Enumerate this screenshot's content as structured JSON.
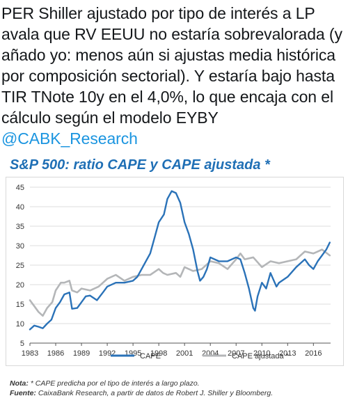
{
  "tweet": {
    "text": "PER Shiller ajustado por tipo de interés a LP avala que RV EEUU no estaría sobrevalorada (y añado yo: menos aún si ajustas media histórica por composición sectorial). Y estaría bajo hasta TIR TNote 10y en el 4,0%, lo que encaja con el cálculo según el modelo EYBY",
    "mention": "@CABK_Research"
  },
  "chart_data": {
    "type": "line",
    "title": "S&P 500: ratio CAPE y CAPE ajustada *",
    "xlabel": "",
    "ylabel": "",
    "ylim": [
      5,
      45
    ],
    "yticks": [
      "5",
      "10",
      "15",
      "20",
      "25",
      "30",
      "35",
      "40",
      "45"
    ],
    "xlim": [
      1983,
      2018
    ],
    "xticks": [
      "1983",
      "1986",
      "1989",
      "1992",
      "1995",
      "1998",
      "2001",
      "2004",
      "2007",
      "2010",
      "2013",
      "2016"
    ],
    "grid": true,
    "legend_position": "bottom",
    "colors": {
      "CAPE": "#2a72b8",
      "CAPE ajustada *": "#b4b6b8"
    },
    "series": [
      {
        "name": "CAPE",
        "x": [
          1983.0,
          1983.5,
          1984.0,
          1984.5,
          1985.0,
          1985.5,
          1986.0,
          1986.5,
          1987.0,
          1987.6,
          1987.9,
          1988.5,
          1989.0,
          1989.5,
          1990.0,
          1990.8,
          1991.5,
          1992.0,
          1993.0,
          1994.0,
          1995.0,
          1995.5,
          1996.0,
          1996.5,
          1997.0,
          1997.5,
          1998.0,
          1998.6,
          1999.0,
          1999.5,
          2000.0,
          2000.5,
          2001.0,
          2001.5,
          2002.0,
          2002.5,
          2002.8,
          2003.2,
          2003.6,
          2004.0,
          2005.0,
          2006.0,
          2007.0,
          2007.5,
          2008.0,
          2008.5,
          2009.0,
          2009.2,
          2009.5,
          2010.0,
          2010.5,
          2011.0,
          2011.7,
          2012.0,
          2013.0,
          2014.0,
          2015.0,
          2015.5,
          2016.0,
          2016.5,
          2017.0,
          2017.5,
          2017.9
        ],
        "values": [
          8.5,
          9.5,
          9.2,
          8.8,
          10.0,
          11.0,
          14.0,
          15.5,
          17.5,
          18.0,
          13.8,
          14.0,
          15.5,
          17.0,
          17.2,
          16.0,
          18.0,
          19.5,
          20.5,
          20.5,
          21.0,
          22.0,
          24.0,
          26.0,
          28.0,
          32.0,
          36.0,
          38.0,
          42.0,
          44.0,
          43.5,
          41.0,
          36.0,
          33.0,
          29.0,
          23.5,
          21.0,
          22.0,
          24.0,
          27.0,
          26.0,
          26.0,
          27.0,
          26.5,
          23.0,
          19.0,
          14.0,
          13.3,
          17.0,
          20.5,
          19.0,
          23.0,
          19.5,
          20.5,
          22.0,
          24.5,
          26.5,
          25.0,
          24.0,
          26.0,
          27.5,
          29.0,
          30.8
        ]
      },
      {
        "name": "CAPE ajustada *",
        "x": [
          1983.0,
          1983.5,
          1984.0,
          1984.5,
          1985.0,
          1985.6,
          1986.0,
          1986.6,
          1987.0,
          1987.6,
          1987.9,
          1988.5,
          1989.0,
          1990.0,
          1991.0,
          1992.0,
          1993.0,
          1994.0,
          1995.0,
          1996.0,
          1997.0,
          1998.0,
          1998.5,
          1999.0,
          2000.0,
          2000.5,
          2001.0,
          2002.0,
          2003.0,
          2004.0,
          2005.0,
          2006.0,
          2007.0,
          2007.5,
          2008.0,
          2009.0,
          2010.0,
          2011.0,
          2012.0,
          2013.0,
          2014.0,
          2015.0,
          2016.0,
          2016.5,
          2017.0,
          2017.9
        ],
        "values": [
          16.0,
          14.5,
          13.0,
          12.0,
          14.0,
          15.5,
          18.5,
          20.5,
          20.5,
          21.0,
          18.5,
          18.0,
          19.0,
          18.5,
          19.5,
          21.5,
          22.5,
          21.0,
          22.0,
          22.5,
          22.5,
          24.0,
          23.0,
          22.5,
          23.0,
          22.0,
          24.5,
          23.5,
          24.0,
          26.0,
          25.5,
          24.0,
          26.5,
          28.0,
          26.5,
          27.0,
          24.5,
          26.0,
          25.5,
          26.0,
          26.5,
          28.5,
          28.0,
          28.5,
          29.0,
          27.5
        ]
      }
    ],
    "notes": [
      {
        "label": "Nota:",
        "text": "* CAPE predicha por el tipo de interés a largo plazo."
      },
      {
        "label": "Fuente:",
        "text": "CaixaBank Research, a partir de datos de Robert J. Shiller y Bloomberg."
      }
    ]
  }
}
